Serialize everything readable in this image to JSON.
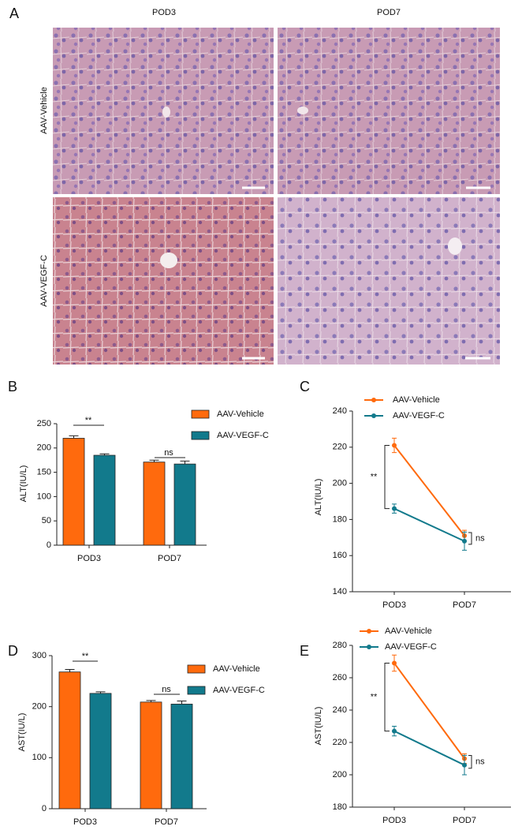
{
  "panels": [
    "A",
    "B",
    "C",
    "D",
    "E"
  ],
  "histology": {
    "columns": [
      "POD3",
      "POD7"
    ],
    "rows": [
      "AAV-Vehicle",
      "AAV-VEGF-C"
    ]
  },
  "chart_data": [
    {
      "type": "bar",
      "ylabel": "ALT(IU/L)",
      "categories": [
        "POD3",
        "POD7"
      ],
      "series": [
        {
          "name": "AAV-Vehicle",
          "color": "#ff6a0d",
          "values": [
            220,
            171
          ],
          "errors": [
            5,
            4
          ]
        },
        {
          "name": "AAV-VEGF-C",
          "color": "#127a8c",
          "values": [
            185,
            167
          ],
          "errors": [
            3,
            6
          ]
        }
      ],
      "ylim": [
        0,
        250
      ],
      "yticks": [
        0,
        50,
        100,
        150,
        200,
        250
      ],
      "annotations": [
        "**",
        "ns"
      ]
    },
    {
      "type": "line",
      "ylabel": "ALT(IU/L)",
      "categories": [
        "POD3",
        "POD7"
      ],
      "series": [
        {
          "name": "AAV-Vehicle",
          "color": "#ff6a0d",
          "values": [
            221,
            171
          ],
          "errors": [
            4,
            3
          ]
        },
        {
          "name": "AAV-VEGF-C",
          "color": "#127a8c",
          "values": [
            186,
            168
          ],
          "errors": [
            2.5,
            5
          ]
        }
      ],
      "ylim": [
        140,
        240
      ],
      "yticks": [
        140,
        160,
        180,
        200,
        220,
        240
      ],
      "annotations": [
        "**",
        "ns"
      ]
    },
    {
      "type": "bar",
      "ylabel": "AST(IU/L)",
      "categories": [
        "POD3",
        "POD7"
      ],
      "series": [
        {
          "name": "AAV-Vehicle",
          "color": "#ff6a0d",
          "values": [
            268,
            209
          ],
          "errors": [
            5,
            3
          ]
        },
        {
          "name": "AAV-VEGF-C",
          "color": "#127a8c",
          "values": [
            226,
            205
          ],
          "errors": [
            3,
            6
          ]
        }
      ],
      "ylim": [
        0,
        300
      ],
      "yticks": [
        0,
        100,
        200,
        300
      ],
      "annotations": [
        "**",
        "ns"
      ]
    },
    {
      "type": "line",
      "ylabel": "AST(IU/L)",
      "categories": [
        "POD3",
        "POD7"
      ],
      "series": [
        {
          "name": "AAV-Vehicle",
          "color": "#ff6a0d",
          "values": [
            269,
            210
          ],
          "errors": [
            5,
            3
          ]
        },
        {
          "name": "AAV-VEGF-C",
          "color": "#127a8c",
          "values": [
            227,
            206
          ],
          "errors": [
            3,
            6
          ]
        }
      ],
      "ylim": [
        180,
        280
      ],
      "yticks": [
        180,
        200,
        220,
        240,
        260,
        280
      ],
      "annotations": [
        "**",
        "ns"
      ]
    }
  ]
}
